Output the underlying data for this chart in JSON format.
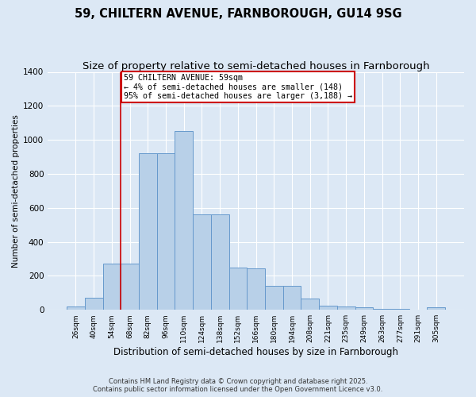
{
  "title_line1": "59, CHILTERN AVENUE, FARNBOROUGH, GU14 9SG",
  "title_line2": "Size of property relative to semi-detached houses in Farnborough",
  "xlabel": "Distribution of semi-detached houses by size in Farnborough",
  "ylabel": "Number of semi-detached properties",
  "categories": [
    "26sqm",
    "40sqm",
    "54sqm",
    "68sqm",
    "82sqm",
    "96sqm",
    "110sqm",
    "124sqm",
    "138sqm",
    "152sqm",
    "166sqm",
    "180sqm",
    "194sqm",
    "208sqm",
    "221sqm",
    "235sqm",
    "249sqm",
    "263sqm",
    "277sqm",
    "291sqm",
    "305sqm"
  ],
  "values": [
    20,
    70,
    270,
    270,
    920,
    920,
    1050,
    560,
    560,
    250,
    245,
    140,
    140,
    65,
    25,
    20,
    15,
    5,
    5,
    0,
    15
  ],
  "bar_color": "#b8d0e8",
  "bar_edge_color": "#6699cc",
  "red_line_x": 2.5,
  "annotation_title": "59 CHILTERN AVENUE: 59sqm",
  "annotation_line2": "← 4% of semi-detached houses are smaller (148)",
  "annotation_line3": "95% of semi-detached houses are larger (3,188) →",
  "annotation_box_color": "#ffffff",
  "annotation_box_edge": "#cc0000",
  "red_line_color": "#cc0000",
  "ylim": [
    0,
    1400
  ],
  "yticks": [
    0,
    200,
    400,
    600,
    800,
    1000,
    1200,
    1400
  ],
  "footer_line1": "Contains HM Land Registry data © Crown copyright and database right 2025.",
  "footer_line2": "Contains public sector information licensed under the Open Government Licence v3.0.",
  "bg_color": "#dce8f5",
  "plot_bg_color": "#dce8f5",
  "title_fontsize": 10.5,
  "subtitle_fontsize": 9.5
}
